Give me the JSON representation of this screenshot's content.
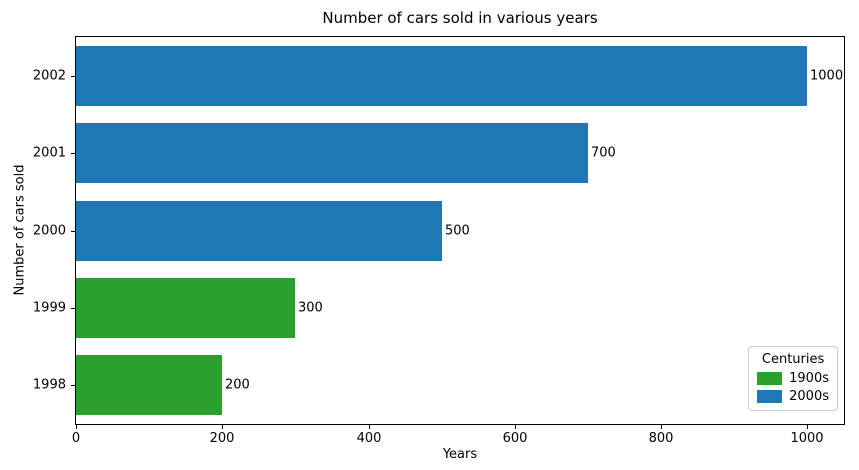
{
  "chart_data": {
    "type": "bar",
    "orientation": "horizontal",
    "title": "Number of cars sold in various years",
    "xlabel": "Years",
    "ylabel": "Number of cars sold",
    "categories": [
      "2002",
      "2001",
      "2000",
      "1999",
      "1998"
    ],
    "values": [
      1000,
      700,
      500,
      300,
      200
    ],
    "bar_labels": [
      "1000",
      "700",
      "500",
      "300",
      "200"
    ],
    "series_by_bar": [
      "2000s",
      "2000s",
      "2000s",
      "1900s",
      "1900s"
    ],
    "colors": {
      "1900s": "#2ca02c",
      "2000s": "#1f77b4"
    },
    "xlim": [
      0,
      1050
    ],
    "xticks": [
      0,
      200,
      400,
      600,
      800,
      1000
    ],
    "grid": false,
    "legend": {
      "title": "Centuries",
      "position": "lower right",
      "entries": [
        {
          "label": "1900s",
          "color": "#2ca02c"
        },
        {
          "label": "2000s",
          "color": "#1f77b4"
        }
      ]
    }
  }
}
